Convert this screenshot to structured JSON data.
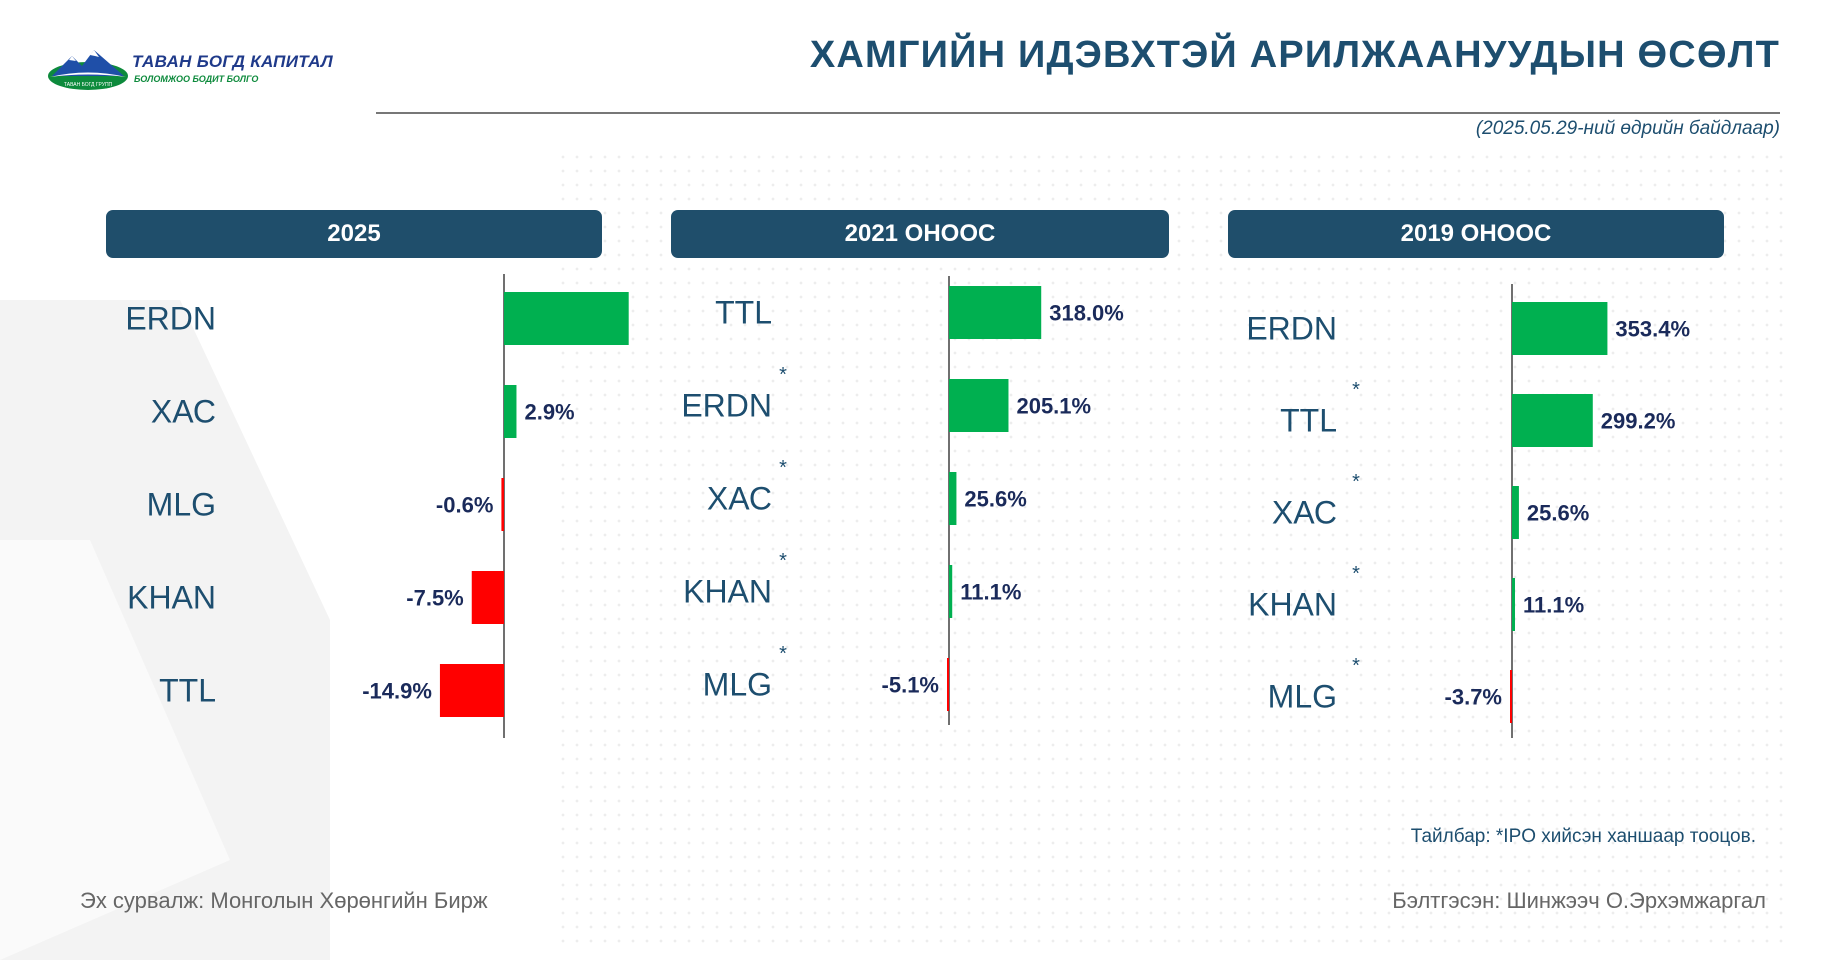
{
  "logo": {
    "name": "ТАВАН БОГД КАПИТАЛ",
    "tagline": "БОЛОМЖОО БОДИТ БОЛГО",
    "mark_text": "ТАВАН БОГД ГРУПП"
  },
  "title": "ХАМГИЙН ИДЭВХТЭЙ АРИЛЖААНУУДЫН ӨСӨЛТ",
  "date_note": "(2025.05.29-ний өдрийн байдлаар)",
  "colors": {
    "positive": "#00b050",
    "negative": "#ff0000",
    "header_bg": "#1f4e6b",
    "text": "#1d4e6f"
  },
  "chart_data": [
    {
      "type": "bar",
      "title": "2025",
      "orientation": "horizontal",
      "categories": [
        "ERDN",
        "ХАС",
        "MLG",
        "KHAN",
        "TTL"
      ],
      "values": [
        29.0,
        2.9,
        -0.6,
        -7.5,
        -14.9
      ],
      "value_labels": [
        "",
        "2.9%",
        "-0.6%",
        "-7.5%",
        "-14.9%"
      ],
      "ipo_marks": [
        false,
        false,
        false,
        false,
        false
      ]
    },
    {
      "type": "bar",
      "title": "2021 ОНООС",
      "orientation": "horizontal",
      "categories": [
        "TTL",
        "ERDN",
        "ХАС",
        "KHAN",
        "MLG"
      ],
      "values": [
        318.0,
        205.1,
        25.6,
        11.1,
        -5.1
      ],
      "value_labels": [
        "318.0%",
        "205.1%",
        "25.6%",
        "11.1%",
        "-5.1%"
      ],
      "ipo_marks": [
        false,
        true,
        true,
        true,
        true
      ]
    },
    {
      "type": "bar",
      "title": "2019 ОНООС",
      "orientation": "horizontal",
      "categories": [
        "ERDN",
        "TTL",
        "ХАС",
        "KHAN",
        "MLG"
      ],
      "values": [
        353.4,
        299.2,
        25.6,
        11.1,
        -3.7
      ],
      "value_labels": [
        "353.4%",
        "299.2%",
        "25.6%",
        "11.1%",
        "-3.7%"
      ],
      "ipo_marks": [
        false,
        true,
        true,
        true,
        true
      ]
    }
  ],
  "footnote": "Тайлбар: *IPO хийсэн ханшаар тооцов.",
  "source": "Эх сурвалж:  Монголын Хөрөнгийн Бирж",
  "prepared_by": "Бэлтгэсэн: Шинжээч О.Эрхэмжаргал"
}
